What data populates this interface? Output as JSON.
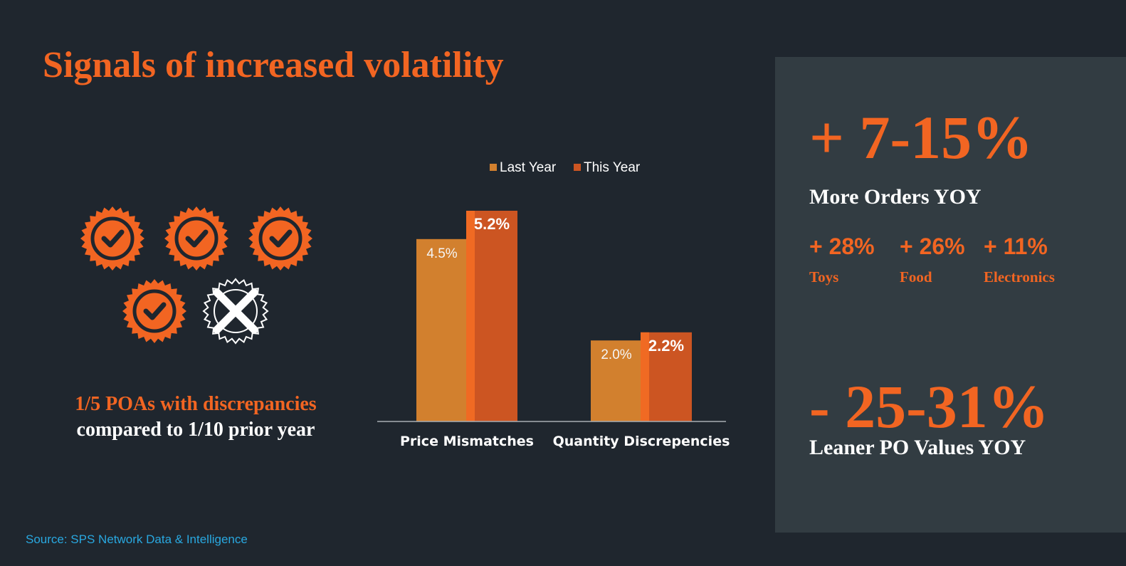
{
  "title": "Signals of increased volatility",
  "badges": {
    "items": [
      {
        "state": "check",
        "icon": "check-badge-icon"
      },
      {
        "state": "check",
        "icon": "check-badge-icon"
      },
      {
        "state": "check",
        "icon": "check-badge-icon"
      },
      {
        "state": "check",
        "icon": "check-badge-icon"
      },
      {
        "state": "cross",
        "icon": "cross-badge-icon"
      }
    ],
    "caption_highlight": "1/5 POAs with discrepancies",
    "caption_rest": "compared to 1/10 prior year"
  },
  "chart_data": {
    "type": "bar",
    "categories": [
      "Price Mismatches",
      "Quantity Discrepencies"
    ],
    "series": [
      {
        "name": "Last Year",
        "values": [
          4.5,
          2.0
        ],
        "labels": [
          "4.5%",
          "2.0%"
        ],
        "color": "#d2802e"
      },
      {
        "name": "This Year",
        "values": [
          5.2,
          2.2
        ],
        "labels": [
          "5.2%",
          "2.2%"
        ],
        "color": "#cc5522"
      }
    ],
    "legend": "top-center",
    "ylim": [
      0,
      5.2
    ],
    "grid": false
  },
  "panel": {
    "orders": {
      "value": "+ 7-15%",
      "label": "More Orders YOY"
    },
    "categories": [
      {
        "value": "+ 28%",
        "name": "Toys"
      },
      {
        "value": "+ 26%",
        "name": "Food"
      },
      {
        "value": "+ 11%",
        "name": "Electronics"
      }
    ],
    "po": {
      "value": "- 25-31%",
      "label": "Leaner PO Values YOY"
    }
  },
  "source": "Source: SPS Network Data & Intelligence",
  "colors": {
    "accent": "#f26522",
    "background": "#1f262e",
    "panel": "#323c42",
    "source": "#29a8e0"
  }
}
